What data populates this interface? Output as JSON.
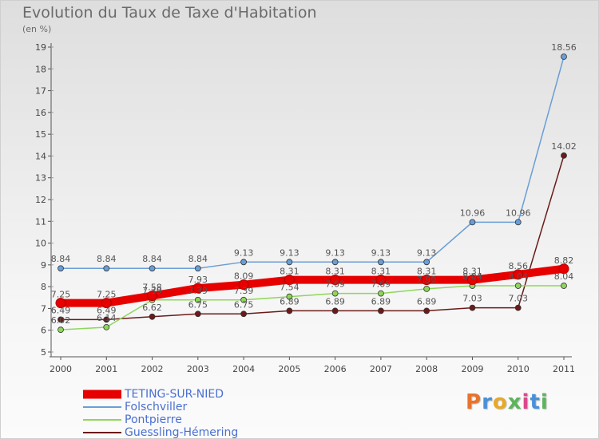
{
  "header": {
    "title": "Evolution du Taux de Taxe d'Habitation",
    "subtitle": "(en %)"
  },
  "logo": {
    "text": "Proxiti",
    "colors": [
      "#e8732a",
      "#4a90d9",
      "#e8a92a",
      "#5bb55b",
      "#d94a8a",
      "#4a90d9",
      "#5bb55b"
    ]
  },
  "chart_data": {
    "type": "line",
    "categories": [
      "2000",
      "2001",
      "2002",
      "2003",
      "2004",
      "2005",
      "2006",
      "2007",
      "2008",
      "2009",
      "2010",
      "2011"
    ],
    "ylim": [
      5,
      19
    ],
    "yticks": [
      5,
      6,
      7,
      8,
      9,
      10,
      11,
      12,
      13,
      14,
      15,
      16,
      17,
      18,
      19
    ],
    "grid": false,
    "legend_placement": "bottom-left",
    "series": [
      {
        "name": "TETING-SUR-NIED",
        "color": "#e60000",
        "values": [
          7.25,
          7.25,
          7.58,
          7.93,
          8.09,
          8.31,
          8.31,
          8.31,
          8.31,
          8.31,
          8.56,
          8.82
        ],
        "labels": [
          "7.25",
          "7.25",
          "7.58",
          "7.93",
          "8.09",
          "8.31",
          "8.31",
          "8.31",
          "8.31",
          "8.31",
          "8.56",
          "8.82"
        ]
      },
      {
        "name": "Folschviller",
        "color": "#6a9ed6",
        "values": [
          8.84,
          8.84,
          8.84,
          8.84,
          9.13,
          9.13,
          9.13,
          9.13,
          9.13,
          10.96,
          10.96,
          18.56
        ],
        "labels": [
          "8.84",
          "8.84",
          "8.84",
          "8.84",
          "9.13",
          "9.13",
          "9.13",
          "9.13",
          "9.13",
          "10.96",
          "10.96",
          "18.56"
        ]
      },
      {
        "name": "Pontpierre",
        "color": "#8ed65a",
        "values": [
          6.02,
          6.14,
          7.39,
          7.39,
          7.39,
          7.54,
          7.69,
          7.69,
          7.9,
          8.04,
          8.04,
          8.04
        ],
        "labels": [
          "6.02",
          "6.14",
          "7.39",
          "7.39",
          "7.39",
          "7.54",
          "7.69",
          "7.69",
          "7.90",
          "8.04",
          "8.04",
          "8.04"
        ]
      },
      {
        "name": "Guessling-Hémering",
        "color": "#6b1a1a",
        "values": [
          6.49,
          6.49,
          6.62,
          6.75,
          6.75,
          6.89,
          6.89,
          6.89,
          6.89,
          7.03,
          7.03,
          14.02
        ],
        "labels": [
          "6.49",
          "6.49",
          "6.62",
          "6.75",
          "6.75",
          "6.89",
          "6.89",
          "6.89",
          "6.89",
          "7.03",
          "7.03",
          "14.02"
        ]
      }
    ]
  }
}
